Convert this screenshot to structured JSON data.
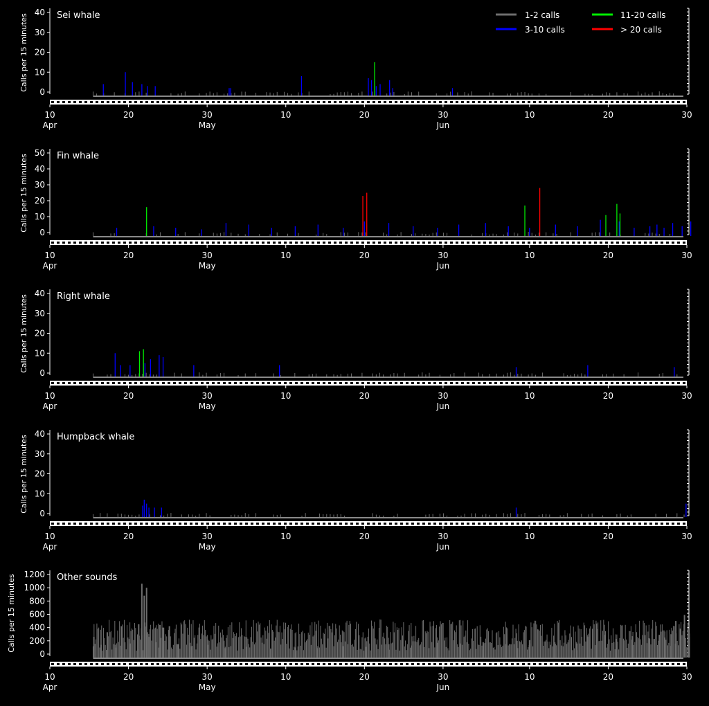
{
  "colors": {
    "background": "#000000",
    "axis": "#ffffff",
    "calls_1_2": "#6e6e6e",
    "calls_3_10": "#0000ff",
    "calls_11_20": "#00ee00",
    "calls_over_20": "#ff0000"
  },
  "legend": {
    "placement": "top-right",
    "items": [
      {
        "label": "1-2 calls",
        "color": "#6e6e6e"
      },
      {
        "label": "11-20 calls",
        "color": "#00ee00"
      },
      {
        "label": "3-10 calls",
        "color": "#0000ff"
      },
      {
        "label": "> 20 calls",
        "color": "#ff0000"
      }
    ]
  },
  "x_axis": {
    "range": [
      "Apr 10",
      "Jun 30"
    ],
    "ticks": [
      {
        "label": "10",
        "month": "Apr",
        "day": 0
      },
      {
        "label": "20",
        "month": "",
        "day": 10
      },
      {
        "label": "30",
        "month": "May",
        "day": 20
      },
      {
        "label": "10",
        "month": "",
        "day": 30
      },
      {
        "label": "20",
        "month": "",
        "day": 40
      },
      {
        "label": "30",
        "month": "Jun",
        "day": 50
      },
      {
        "label": "10",
        "month": "",
        "day": 61
      },
      {
        "label": "20",
        "month": "",
        "day": 71
      },
      {
        "label": "30",
        "month": "",
        "day": 81
      }
    ]
  },
  "chart_data": [
    {
      "type": "bar",
      "title": "Sei whale",
      "ylabel": "Calls per 15 minutes",
      "ylim": [
        0,
        40
      ],
      "yticks": [
        0,
        10,
        20,
        30,
        40
      ],
      "grid": false,
      "data_start_day": 5.5,
      "series": [
        {
          "name": "3-10 calls",
          "color": "#0000ff",
          "x": [
            6.8,
            9.6,
            10.5,
            11.7,
            12.4,
            13.4,
            22.8,
            23.0,
            32.0,
            40.5,
            40.9,
            41.5,
            42.0,
            43.2,
            43.6,
            51.2
          ],
          "y": [
            4,
            10,
            5,
            4,
            3,
            3,
            2,
            2,
            8,
            7,
            6,
            3,
            4,
            6,
            2,
            2
          ]
        },
        {
          "name": "11-20 calls",
          "color": "#00ee00",
          "x": [
            41.3
          ],
          "y": [
            15
          ]
        }
      ]
    },
    {
      "type": "bar",
      "title": "Fin whale",
      "ylabel": "Calls per 15 minutes",
      "ylim": [
        0,
        50
      ],
      "yticks": [
        0,
        10,
        20,
        30,
        40,
        50
      ],
      "grid": false,
      "data_start_day": 5.5,
      "series": [
        {
          "name": "3-10 calls",
          "color": "#0000ff",
          "x": [
            8.5,
            13.2,
            16.0,
            19.3,
            22.4,
            25.3,
            28.2,
            31.2,
            34.1,
            37.3,
            40.0,
            43.1,
            46.2,
            49.3,
            52.0,
            55.4,
            58.3,
            61.0,
            64.3,
            67.1,
            70.0,
            72.4,
            74.3,
            76.3,
            77.2,
            78.1,
            79.2,
            80.4,
            81.5
          ],
          "y": [
            3,
            4,
            3,
            2,
            6,
            5,
            3,
            4,
            5,
            3,
            7,
            6,
            4,
            3,
            5,
            6,
            4,
            3,
            5,
            4,
            8,
            7,
            3,
            4,
            5,
            3,
            6,
            4,
            7
          ]
        },
        {
          "name": "11-20 calls",
          "color": "#00ee00",
          "x": [
            12.3,
            60.4,
            70.7,
            72.1,
            72.5
          ],
          "y": [
            16,
            17,
            11,
            18,
            12
          ]
        },
        {
          "name": "> 20 calls",
          "color": "#ff0000",
          "x": [
            39.8,
            40.3,
            62.3
          ],
          "y": [
            23,
            25,
            28
          ]
        }
      ]
    },
    {
      "type": "bar",
      "title": "Right whale",
      "ylabel": "Calls per 15 minutes",
      "ylim": [
        0,
        40
      ],
      "yticks": [
        0,
        10,
        20,
        30,
        40
      ],
      "grid": false,
      "data_start_day": 5.5,
      "series": [
        {
          "name": "3-10 calls",
          "color": "#0000ff",
          "x": [
            8.3,
            9.0,
            10.2,
            12.1,
            12.8,
            13.9,
            14.4,
            18.3,
            29.2,
            59.3,
            68.4,
            79.4
          ],
          "y": [
            10,
            4,
            4,
            5,
            7,
            9,
            8,
            4,
            4,
            3,
            4,
            3
          ]
        },
        {
          "name": "11-20 calls",
          "color": "#00ee00",
          "x": [
            11.4,
            11.9
          ],
          "y": [
            11,
            12
          ]
        }
      ]
    },
    {
      "type": "bar",
      "title": "Humpback whale",
      "ylabel": "Calls per 15 minutes",
      "ylim": [
        0,
        40
      ],
      "yticks": [
        0,
        10,
        20,
        30,
        40
      ],
      "grid": false,
      "data_start_day": 5.5,
      "series": [
        {
          "name": "3-10 calls",
          "color": "#0000ff",
          "x": [
            11.8,
            12.0,
            12.3,
            12.6,
            13.3,
            14.2,
            59.3,
            80.9
          ],
          "y": [
            4,
            7,
            5,
            3,
            3,
            3,
            3,
            5
          ]
        }
      ]
    },
    {
      "type": "bar",
      "title": "Other sounds",
      "ylabel": "Calls per 15 minutes",
      "ylim": [
        0,
        1200
      ],
      "yticks": [
        0,
        200,
        400,
        600,
        800,
        1000,
        1200
      ],
      "grid": false,
      "data_start_day": 5.5,
      "series": [
        {
          "name": "1-2 calls",
          "color": "#6e6e6e",
          "x": [
            5.6,
            6.5,
            7.3,
            8.3,
            9.1,
            10.2,
            11.3,
            11.7,
            12.0,
            12.3,
            12.6,
            13.5,
            14.0,
            14.4,
            15.2,
            16.3,
            18.0,
            20.1,
            22.3,
            25.0,
            28.1,
            31.2,
            34.0,
            37.3,
            40.2,
            43.1,
            46.0,
            49.3,
            52.2,
            55.1,
            58.0,
            59.4,
            61.0,
            64.2,
            67.0,
            68.4,
            69.5,
            70.6,
            72.0,
            74.1,
            76.2,
            77.5,
            78.2,
            79.0,
            79.6,
            80.2,
            80.7,
            81.3
          ],
          "y": [
            260,
            140,
            330,
            140,
            420,
            160,
            450,
            1060,
            880,
            1000,
            260,
            180,
            440,
            400,
            420,
            150,
            120,
            140,
            90,
            110,
            80,
            100,
            90,
            120,
            110,
            150,
            130,
            170,
            160,
            180,
            150,
            200,
            210,
            180,
            160,
            260,
            460,
            290,
            230,
            270,
            240,
            290,
            250,
            300,
            500,
            380,
            590,
            310
          ]
        }
      ]
    }
  ]
}
